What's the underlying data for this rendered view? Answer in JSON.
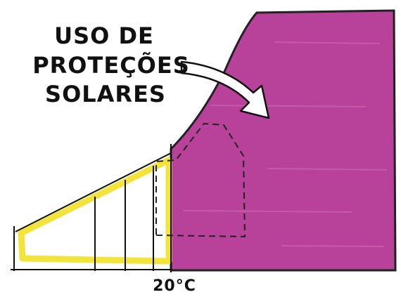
{
  "annotation": {
    "lines": [
      "USO DE",
      "PROTEÇÕES",
      "SOLARES"
    ]
  },
  "axis_label": "20°C"
}
